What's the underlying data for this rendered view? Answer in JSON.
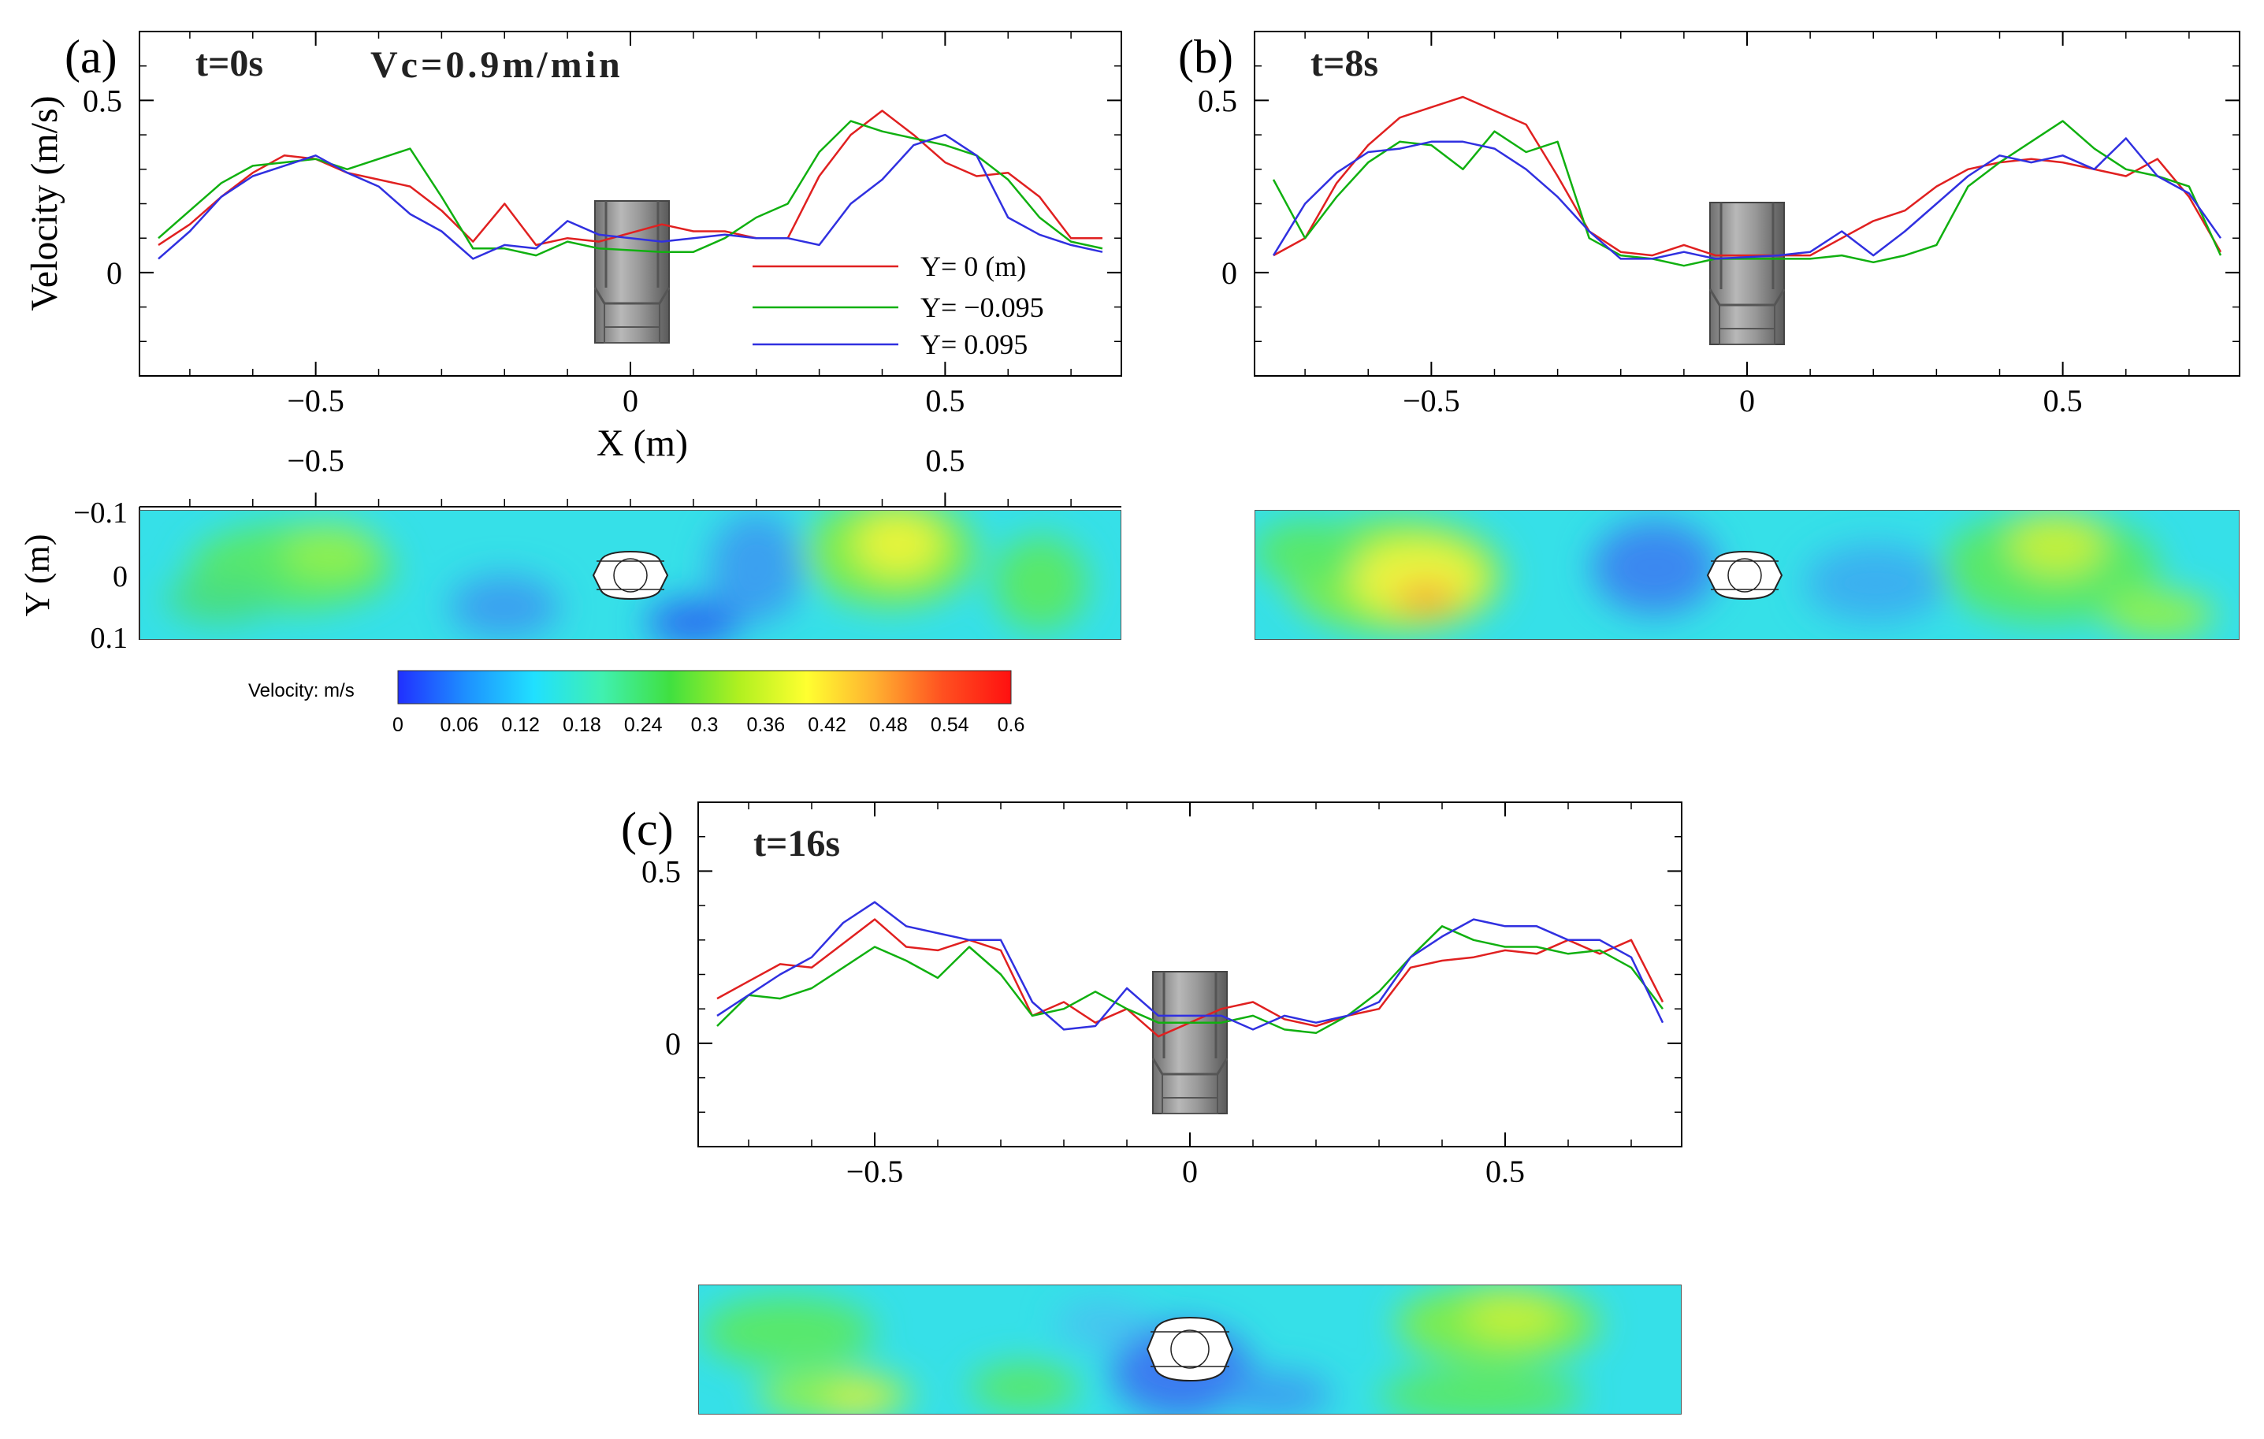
{
  "figure": {
    "colorbar": {
      "label": "Velocity: m/s",
      "ticks": [
        "0",
        "0.06",
        "0.12",
        "0.18",
        "0.24",
        "0.3",
        "0.36",
        "0.42",
        "0.48",
        "0.54",
        "0.6"
      ],
      "colors": [
        "#2030ff",
        "#1e90ff",
        "#20e0ff",
        "#40f0b0",
        "#40e040",
        "#b0f020",
        "#ffff30",
        "#ffb030",
        "#ff5020",
        "#ff1010"
      ]
    },
    "series_colors": {
      "y0": "#e02020",
      "yneg": "#10b010",
      "ypos": "#3030e0"
    }
  },
  "chart_data": [
    {
      "type": "line",
      "panel_label": "(a)",
      "title": "t=0s",
      "annotation": "Vc=0.9m/min",
      "xlabel": "X (m)",
      "ylabel": "Velocity (m/s)",
      "xlim": [
        -0.78,
        0.78
      ],
      "ylim": [
        -0.3,
        0.7
      ],
      "xticks": [
        "−0.5",
        "0",
        "0.5"
      ],
      "yticks": [
        "0",
        "0.5"
      ],
      "top_xticks": [
        "−0.5",
        "0.5"
      ],
      "legend": [
        "Y= 0 (m)",
        "Y= −0.095",
        "Y= 0.095"
      ],
      "contour_ylabel": "Y (m)",
      "contour_yticks": [
        "−0.1",
        "0",
        "0.1"
      ],
      "x": [
        -0.75,
        -0.7,
        -0.65,
        -0.6,
        -0.55,
        -0.5,
        -0.45,
        -0.4,
        -0.35,
        -0.3,
        -0.25,
        -0.2,
        -0.15,
        -0.1,
        -0.05,
        0.05,
        0.1,
        0.15,
        0.2,
        0.25,
        0.3,
        0.35,
        0.4,
        0.45,
        0.5,
        0.55,
        0.6,
        0.65,
        0.7,
        0.75
      ],
      "series": [
        {
          "name": "Y= 0 (m)",
          "values": [
            0.08,
            0.14,
            0.22,
            0.29,
            0.34,
            0.33,
            0.29,
            0.27,
            0.25,
            0.18,
            0.09,
            0.2,
            0.08,
            0.1,
            0.09,
            0.14,
            0.12,
            0.12,
            0.1,
            0.1,
            0.28,
            0.4,
            0.47,
            0.4,
            0.32,
            0.28,
            0.29,
            0.22,
            0.1,
            0.1
          ]
        },
        {
          "name": "Y= −0.095",
          "values": [
            0.1,
            0.18,
            0.26,
            0.31,
            0.32,
            0.33,
            0.3,
            0.33,
            0.36,
            0.22,
            0.07,
            0.07,
            0.05,
            0.09,
            0.07,
            0.06,
            0.06,
            0.1,
            0.16,
            0.2,
            0.35,
            0.44,
            0.41,
            0.39,
            0.37,
            0.34,
            0.27,
            0.16,
            0.09,
            0.07
          ]
        },
        {
          "name": "Y= 0.095",
          "values": [
            0.04,
            0.12,
            0.22,
            0.28,
            0.31,
            0.34,
            0.29,
            0.25,
            0.17,
            0.12,
            0.04,
            0.08,
            0.07,
            0.15,
            0.11,
            0.09,
            0.1,
            0.11,
            0.1,
            0.1,
            0.08,
            0.2,
            0.27,
            0.37,
            0.4,
            0.34,
            0.16,
            0.11,
            0.08,
            0.06
          ]
        }
      ]
    },
    {
      "type": "line",
      "panel_label": "(b)",
      "title": "t=8s",
      "xlim": [
        -0.78,
        0.78
      ],
      "ylim": [
        -0.3,
        0.7
      ],
      "xticks": [
        "−0.5",
        "0",
        "0.5"
      ],
      "yticks": [
        "0",
        "0.5"
      ],
      "x": [
        -0.75,
        -0.7,
        -0.65,
        -0.6,
        -0.55,
        -0.5,
        -0.45,
        -0.4,
        -0.35,
        -0.3,
        -0.25,
        -0.2,
        -0.15,
        -0.1,
        -0.05,
        0.05,
        0.1,
        0.15,
        0.2,
        0.25,
        0.3,
        0.35,
        0.4,
        0.45,
        0.5,
        0.55,
        0.6,
        0.65,
        0.7,
        0.75
      ],
      "series": [
        {
          "name": "Y= 0 (m)",
          "values": [
            0.05,
            0.1,
            0.26,
            0.37,
            0.45,
            0.48,
            0.51,
            0.47,
            0.43,
            0.28,
            0.12,
            0.06,
            0.05,
            0.08,
            0.05,
            0.05,
            0.05,
            0.1,
            0.15,
            0.18,
            0.25,
            0.3,
            0.32,
            0.33,
            0.32,
            0.3,
            0.28,
            0.33,
            0.22,
            0.06
          ]
        },
        {
          "name": "Y= −0.095",
          "values": [
            0.27,
            0.1,
            0.22,
            0.32,
            0.38,
            0.37,
            0.3,
            0.41,
            0.35,
            0.38,
            0.1,
            0.05,
            0.04,
            0.02,
            0.04,
            0.04,
            0.04,
            0.05,
            0.03,
            0.05,
            0.08,
            0.25,
            0.32,
            0.38,
            0.44,
            0.36,
            0.3,
            0.28,
            0.25,
            0.05
          ]
        },
        {
          "name": "Y= 0.095",
          "values": [
            0.05,
            0.2,
            0.29,
            0.35,
            0.36,
            0.38,
            0.38,
            0.36,
            0.3,
            0.22,
            0.12,
            0.04,
            0.04,
            0.06,
            0.04,
            0.05,
            0.06,
            0.12,
            0.05,
            0.12,
            0.2,
            0.28,
            0.34,
            0.32,
            0.34,
            0.3,
            0.39,
            0.28,
            0.23,
            0.1
          ]
        }
      ]
    },
    {
      "type": "line",
      "panel_label": "(c)",
      "title": "t=16s",
      "xlim": [
        -0.78,
        0.78
      ],
      "ylim": [
        -0.3,
        0.7
      ],
      "xticks": [
        "−0.5",
        "0",
        "0.5"
      ],
      "yticks": [
        "0",
        "0.5"
      ],
      "x": [
        -0.75,
        -0.7,
        -0.65,
        -0.6,
        -0.55,
        -0.5,
        -0.45,
        -0.4,
        -0.35,
        -0.3,
        -0.25,
        -0.2,
        -0.15,
        -0.1,
        -0.05,
        0.05,
        0.1,
        0.15,
        0.2,
        0.25,
        0.3,
        0.35,
        0.4,
        0.45,
        0.5,
        0.55,
        0.6,
        0.65,
        0.7,
        0.75
      ],
      "series": [
        {
          "name": "Y= 0 (m)",
          "values": [
            0.13,
            0.18,
            0.23,
            0.22,
            0.29,
            0.36,
            0.28,
            0.27,
            0.3,
            0.27,
            0.08,
            0.12,
            0.06,
            0.1,
            0.02,
            0.1,
            0.12,
            0.07,
            0.05,
            0.08,
            0.1,
            0.22,
            0.24,
            0.25,
            0.27,
            0.26,
            0.3,
            0.26,
            0.3,
            0.12
          ]
        },
        {
          "name": "Y= −0.095",
          "values": [
            0.05,
            0.14,
            0.13,
            0.16,
            0.22,
            0.28,
            0.24,
            0.19,
            0.28,
            0.2,
            0.08,
            0.1,
            0.15,
            0.1,
            0.06,
            0.06,
            0.08,
            0.04,
            0.03,
            0.08,
            0.15,
            0.25,
            0.34,
            0.3,
            0.28,
            0.28,
            0.26,
            0.27,
            0.22,
            0.1
          ]
        },
        {
          "name": "Y= 0.095",
          "values": [
            0.08,
            0.14,
            0.2,
            0.25,
            0.35,
            0.41,
            0.34,
            0.32,
            0.3,
            0.3,
            0.12,
            0.04,
            0.05,
            0.16,
            0.08,
            0.08,
            0.04,
            0.08,
            0.06,
            0.08,
            0.12,
            0.25,
            0.31,
            0.36,
            0.34,
            0.34,
            0.3,
            0.3,
            0.25,
            0.06
          ]
        }
      ]
    }
  ]
}
